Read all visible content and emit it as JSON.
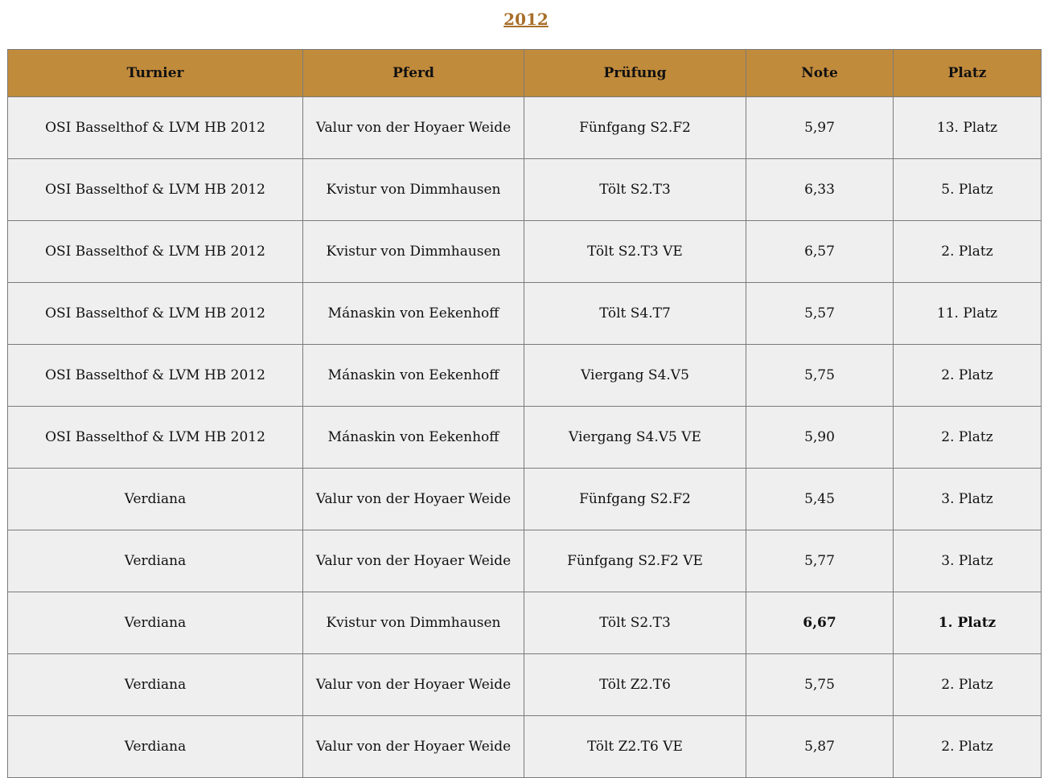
{
  "title": "2012",
  "colors": {
    "header_bg": "#c18b3c",
    "title": "#a86f2a",
    "cell_bg": "#efefef"
  },
  "columns": [
    "Turnier",
    "Pferd",
    "Prüfung",
    "Note",
    "Platz"
  ],
  "rows": [
    {
      "cells": [
        "OSI Basselthof & LVM HB 2012",
        "Valur von der Hoyaer Weide",
        "Fünfgang S2.F2",
        "5,97",
        "13. Platz"
      ],
      "highlight": false
    },
    {
      "cells": [
        "OSI Basselthof & LVM HB 2012",
        "Kvistur von Dimmhausen",
        "Tölt S2.T3",
        "6,33",
        "5. Platz"
      ],
      "highlight": false
    },
    {
      "cells": [
        "OSI Basselthof & LVM HB 2012",
        "Kvistur von Dimmhausen",
        "Tölt S2.T3 VE",
        "6,57",
        "2. Platz"
      ],
      "highlight": false
    },
    {
      "cells": [
        "OSI Basselthof & LVM HB 2012",
        "Mánaskin von Eekenhoff",
        "Tölt S4.T7",
        "5,57",
        "11. Platz"
      ],
      "highlight": false
    },
    {
      "cells": [
        "OSI Basselthof & LVM HB 2012",
        "Mánaskin von Eekenhoff",
        "Viergang S4.V5",
        "5,75",
        "2. Platz"
      ],
      "highlight": false
    },
    {
      "cells": [
        "OSI Basselthof & LVM HB 2012",
        "Mánaskin von Eekenhoff",
        "Viergang S4.V5 VE",
        "5,90",
        "2. Platz"
      ],
      "highlight": false
    },
    {
      "cells": [
        "Verdiana",
        "Valur von der Hoyaer Weide",
        "Fünfgang S2.F2",
        "5,45",
        "3. Platz"
      ],
      "highlight": false
    },
    {
      "cells": [
        "Verdiana",
        "Valur von der Hoyaer Weide",
        "Fünfgang S2.F2 VE",
        "5,77",
        "3. Platz"
      ],
      "highlight": false
    },
    {
      "cells": [
        "Verdiana",
        "Kvistur von Dimmhausen",
        "Tölt S2.T3",
        "6,67",
        "1. Platz"
      ],
      "highlight": true
    },
    {
      "cells": [
        "Verdiana",
        "Valur von der Hoyaer Weide",
        "Tölt Z2.T6",
        "5,75",
        "2. Platz"
      ],
      "highlight": false
    },
    {
      "cells": [
        "Verdiana",
        "Valur von der Hoyaer Weide",
        "Tölt Z2.T6 VE",
        "5,87",
        "2. Platz"
      ],
      "highlight": false
    }
  ]
}
